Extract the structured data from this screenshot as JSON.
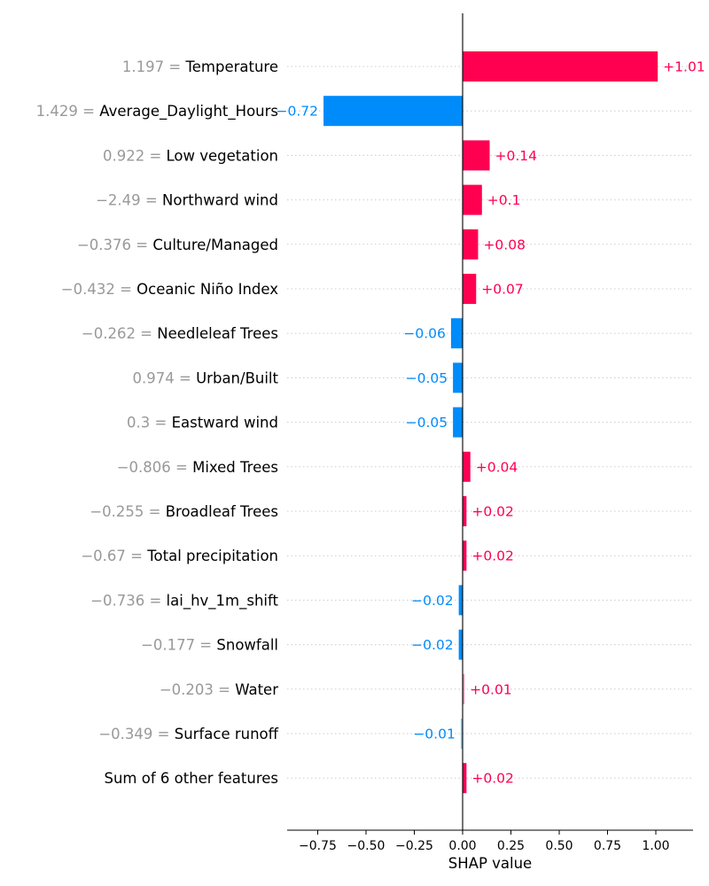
{
  "chart_data": {
    "type": "bar",
    "orientation": "horizontal",
    "xlabel": "SHAP value",
    "xlim": [
      -0.9,
      1.19
    ],
    "xticks": [
      -0.75,
      -0.5,
      -0.25,
      0.0,
      0.25,
      0.5,
      0.75,
      1.0
    ],
    "xtick_labels": [
      "−0.75",
      "−0.50",
      "−0.25",
      "0.00",
      "0.25",
      "0.50",
      "0.75",
      "1.00"
    ],
    "grid": "dotted horizontal row guides",
    "colors": {
      "positive": "#ff0051",
      "negative": "#008bfb"
    },
    "rows": [
      {
        "feature_value": "1.197",
        "feature": "Temperature",
        "shap": 1.01,
        "label": "+1.01"
      },
      {
        "feature_value": "1.429",
        "feature": "Average_Daylight_Hours",
        "shap": -0.72,
        "label": "−0.72"
      },
      {
        "feature_value": "0.922",
        "feature": "Low vegetation",
        "shap": 0.14,
        "label": "+0.14"
      },
      {
        "feature_value": "−2.49",
        "feature": "Northward wind",
        "shap": 0.1,
        "label": "+0.1"
      },
      {
        "feature_value": "−0.376",
        "feature": "Culture/Managed",
        "shap": 0.08,
        "label": "+0.08"
      },
      {
        "feature_value": "−0.432",
        "feature": "Oceanic Niño Index",
        "shap": 0.07,
        "label": "+0.07"
      },
      {
        "feature_value": "−0.262",
        "feature": "Needleleaf Trees",
        "shap": -0.06,
        "label": "−0.06"
      },
      {
        "feature_value": "0.974",
        "feature": "Urban/Built",
        "shap": -0.05,
        "label": "−0.05"
      },
      {
        "feature_value": "0.3",
        "feature": "Eastward wind",
        "shap": -0.05,
        "label": "−0.05"
      },
      {
        "feature_value": "−0.806",
        "feature": "Mixed Trees",
        "shap": 0.04,
        "label": "+0.04"
      },
      {
        "feature_value": "−0.255",
        "feature": "Broadleaf Trees",
        "shap": 0.02,
        "label": "+0.02"
      },
      {
        "feature_value": "−0.67",
        "feature": "Total precipitation",
        "shap": 0.02,
        "label": "+0.02"
      },
      {
        "feature_value": "−0.736",
        "feature": "lai_hv_1m_shift",
        "shap": -0.02,
        "label": "−0.02"
      },
      {
        "feature_value": "−0.177",
        "feature": "Snowfall",
        "shap": -0.02,
        "label": "−0.02"
      },
      {
        "feature_value": "−0.203",
        "feature": "Water",
        "shap": 0.01,
        "label": "+0.01"
      },
      {
        "feature_value": "−0.349",
        "feature": "Surface runoff",
        "shap": -0.01,
        "label": "−0.01"
      },
      {
        "feature_value": "",
        "feature": "Sum of 6 other features",
        "shap": 0.02,
        "label": "+0.02"
      }
    ]
  }
}
